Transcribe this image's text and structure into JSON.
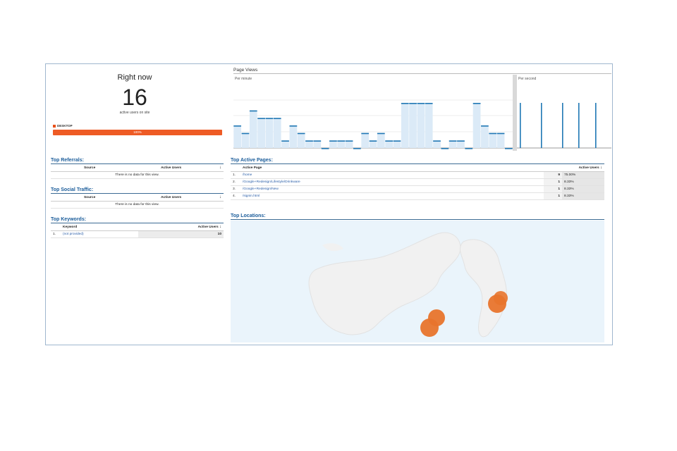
{
  "right_now": {
    "title": "Right now",
    "count": "16",
    "subtitle": "active users on site",
    "device_label": "DESKTOP",
    "device_percent_label": "100%",
    "device_fraction": 1.0,
    "accent_color": "#ee5b25"
  },
  "top_referrals": {
    "title": "Top Referrals:",
    "col_source": "Source",
    "col_active_users": "Active Users",
    "empty_text": "There is no data for this view."
  },
  "top_social": {
    "title": "Top Social Traffic:",
    "col_source": "Source",
    "col_active_users": "Active Users",
    "empty_text": "There is no data for this view."
  },
  "top_keywords": {
    "title": "Top Keywords:",
    "col_keyword": "Keyword",
    "col_active_users": "Active Users",
    "rows": [
      {
        "num": "1.",
        "keyword": "(not provided)",
        "users": "10"
      }
    ]
  },
  "page_views": {
    "title": "Page Views",
    "per_minute_label": "Per minute",
    "per_second_label": "Per second",
    "bar_color": "#1f77b4"
  },
  "chart_data": {
    "type": "bar",
    "title": "Page Views",
    "series": [
      {
        "name": "Per minute",
        "values": [
          3,
          2,
          5,
          4,
          4,
          4,
          1,
          3,
          2,
          1,
          1,
          0,
          1,
          1,
          1,
          0,
          2,
          1,
          2,
          1,
          1,
          6,
          6,
          6,
          6,
          1,
          0,
          1,
          1,
          0,
          6,
          3,
          2,
          2,
          0
        ]
      },
      {
        "name": "Per second",
        "values": [
          6,
          6,
          6,
          6,
          6
        ]
      }
    ]
  },
  "top_active_pages": {
    "title": "Top Active Pages:",
    "col_page": "Active Page",
    "col_active_users": "Active Users",
    "rows": [
      {
        "num": "1.",
        "page": "/home",
        "users": "9",
        "pct": "75.00%"
      },
      {
        "num": "2.",
        "page": "/Google+Redesign/Lifestyle/Drinkware",
        "users": "1",
        "pct": "8.33%"
      },
      {
        "num": "3.",
        "page": "/Google+Redesign/New",
        "users": "1",
        "pct": "8.33%"
      },
      {
        "num": "4.",
        "page": "/signin.html",
        "users": "1",
        "pct": "8.33%"
      }
    ]
  },
  "top_locations": {
    "title": "Top Locations:",
    "marker_color": "#e8742c"
  }
}
